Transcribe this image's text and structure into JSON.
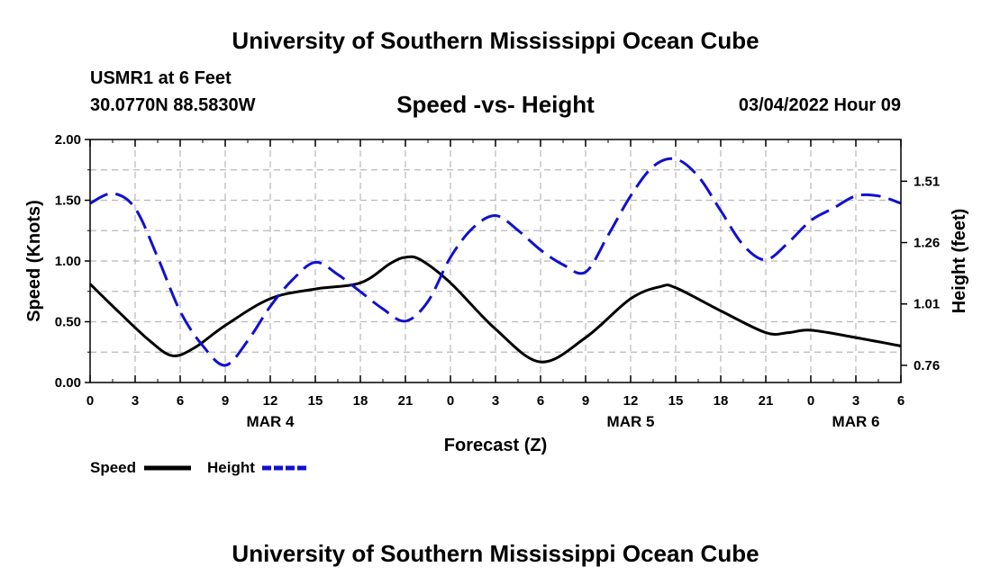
{
  "page": {
    "title_top": "University of Southern Mississippi Ocean Cube",
    "title_bottom": "University of Southern Mississippi Ocean Cube",
    "station": "USMR1 at 6 Feet",
    "coordinates": "30.0770N  88.5830W",
    "subtitle": "Speed -vs- Height",
    "datetime": "03/04/2022 Hour 09"
  },
  "chart_data": {
    "type": "line",
    "title": "Speed -vs- Height",
    "xlabel": "Forecast (Z)",
    "ylabel": "Speed (Knots)",
    "y2label": "Height (feet)",
    "xlim": [
      0,
      54
    ],
    "ylim": [
      0,
      2
    ],
    "y2lim": [
      0.69,
      1.68
    ],
    "grid": true,
    "x_ticks": [
      0,
      3,
      6,
      9,
      12,
      15,
      18,
      21,
      24,
      27,
      30,
      33,
      36,
      39,
      42,
      45,
      48,
      51,
      54
    ],
    "x_tick_labels": [
      "0",
      "3",
      "6",
      "9",
      "12",
      "15",
      "18",
      "21",
      "0",
      "3",
      "6",
      "9",
      "12",
      "15",
      "18",
      "21",
      "0",
      "3",
      "6"
    ],
    "date_labels": [
      {
        "x": 12,
        "label": "MAR 4"
      },
      {
        "x": 36,
        "label": "MAR 5"
      },
      {
        "x": 51,
        "label": "MAR 6"
      }
    ],
    "y_ticks": [
      0,
      0.5,
      1,
      1.5,
      2
    ],
    "y_tick_labels": [
      "0.00",
      "0.50",
      "1.00",
      "1.50",
      "2.00"
    ],
    "y2_ticks": [
      0.76,
      1.01,
      1.26,
      1.51
    ],
    "y2_tick_labels": [
      "0.76",
      "1.01",
      "1.26",
      "1.51"
    ],
    "series": [
      {
        "name": "Speed",
        "axis": "left",
        "color": "#000000",
        "style": "solid",
        "x": [
          0,
          2,
          4,
          5.5,
          7,
          9,
          12,
          15,
          18,
          20,
          21,
          22,
          24,
          27,
          30,
          33,
          36,
          38,
          39,
          42,
          45,
          46.5,
          48,
          51,
          54
        ],
        "values": [
          0.81,
          0.57,
          0.34,
          0.22,
          0.29,
          0.47,
          0.69,
          0.77,
          0.82,
          0.98,
          1.03,
          1.01,
          0.82,
          0.44,
          0.17,
          0.37,
          0.69,
          0.79,
          0.78,
          0.59,
          0.41,
          0.41,
          0.43,
          0.37,
          0.3
        ]
      },
      {
        "name": "Height",
        "axis": "right",
        "color": "#1010d0",
        "style": "dashed",
        "x": [
          0,
          1.5,
          3,
          4.5,
          6,
          7.5,
          9,
          10.5,
          12,
          13.5,
          15,
          16.5,
          18,
          19.5,
          21,
          22.5,
          24,
          25.5,
          27,
          28.5,
          30,
          31.5,
          33,
          34.5,
          36,
          37.5,
          39,
          40.5,
          42,
          43.5,
          45,
          46.5,
          48,
          49.5,
          51,
          52.5,
          54
        ],
        "values": [
          1.42,
          1.46,
          1.4,
          1.2,
          0.98,
          0.84,
          0.76,
          0.86,
          1.0,
          1.11,
          1.18,
          1.13,
          1.06,
          0.99,
          0.94,
          1.02,
          1.2,
          1.32,
          1.37,
          1.31,
          1.23,
          1.17,
          1.14,
          1.29,
          1.45,
          1.57,
          1.6,
          1.53,
          1.39,
          1.25,
          1.19,
          1.26,
          1.35,
          1.4,
          1.45,
          1.45,
          1.42
        ]
      }
    ],
    "legend": [
      {
        "label": "Speed",
        "color": "#000000",
        "style": "solid"
      },
      {
        "label": "Height",
        "color": "#1010d0",
        "style": "dashed"
      }
    ],
    "legend_position": "bottom-left"
  }
}
